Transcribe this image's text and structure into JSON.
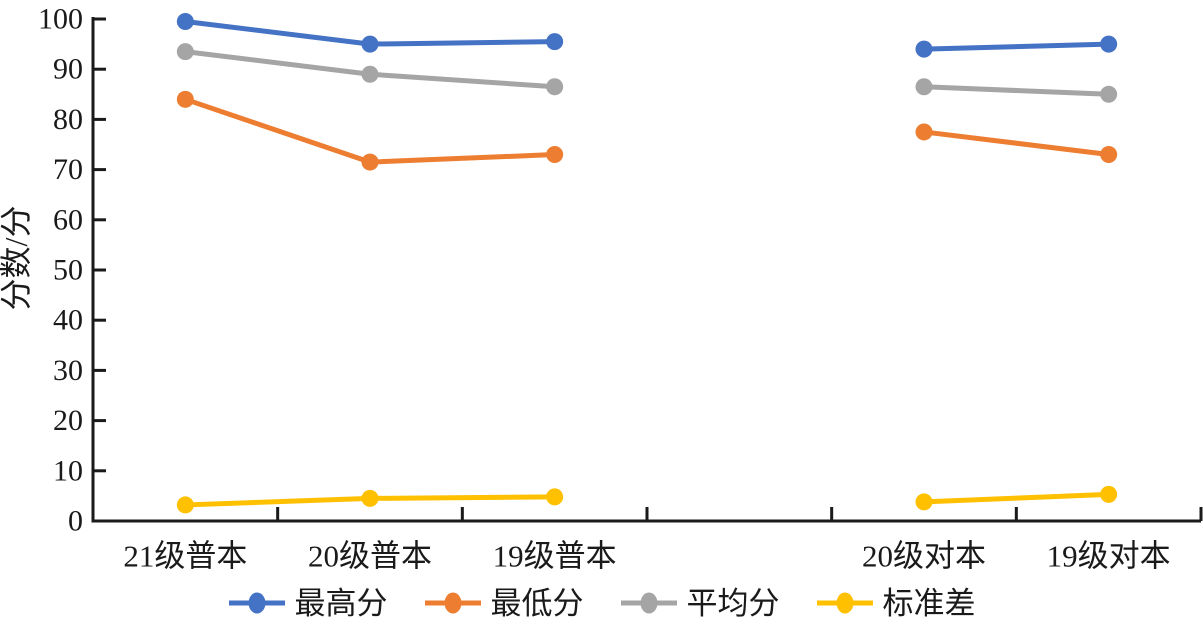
{
  "chart_data": {
    "type": "line",
    "categories": [
      "21级普本",
      "20级普本",
      "19级普本",
      "",
      "20级对本",
      "19级对本"
    ],
    "series": [
      {
        "name": "最高分",
        "color": "#4472C4",
        "values": [
          99.5,
          95,
          95.5,
          null,
          94,
          95
        ]
      },
      {
        "name": "最低分",
        "color": "#ED7D31",
        "values": [
          84,
          71.5,
          73,
          null,
          77.5,
          73
        ]
      },
      {
        "name": "平均分",
        "color": "#A5A5A5",
        "values": [
          93.5,
          89,
          86.5,
          null,
          86.5,
          85
        ]
      },
      {
        "name": "标准差",
        "color": "#FFC000",
        "values": [
          3.2,
          4.5,
          4.8,
          null,
          3.8,
          5.3
        ]
      }
    ],
    "title": "",
    "xlabel": "",
    "ylabel": "分数/分",
    "ylim": [
      0,
      100
    ],
    "yticks": [
      0,
      10,
      20,
      30,
      40,
      50,
      60,
      70,
      80,
      90,
      100
    ],
    "grid": false,
    "legend_position": "bottom",
    "axis_color": "#1a1a1a",
    "background": "#ffffff"
  }
}
